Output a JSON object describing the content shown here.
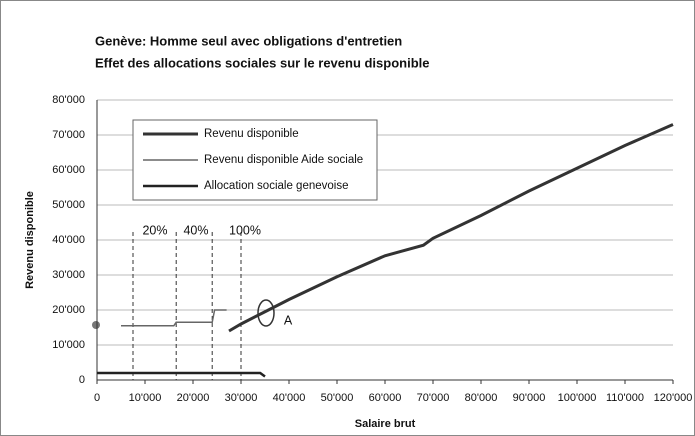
{
  "chart_data": {
    "type": "line",
    "title": "Genève: Homme seul avec obligations d'entretien",
    "subtitle": "Effet des allocations sociales sur le revenu disponible",
    "x_label": "Salaire brut",
    "y_label": "Revenu disponible",
    "xlim": [
      0,
      120000
    ],
    "ylim": [
      0,
      80000
    ],
    "xticks": [
      0,
      {
        "value": 10000,
        "label": "10'000"
      },
      {
        "value": 20000,
        "label": "20'000"
      },
      {
        "value": 30000,
        "label": "30'000"
      },
      {
        "value": 40000,
        "label": "40'000"
      },
      {
        "value": 50000,
        "label": "50'000"
      },
      {
        "value": 60000,
        "label": "60'000"
      },
      {
        "value": 70000,
        "label": "70'000"
      },
      {
        "value": 80000,
        "label": "80'000"
      },
      {
        "value": 90000,
        "label": "90'000"
      },
      {
        "value": 100000,
        "label": "100'000"
      },
      {
        "value": 110000,
        "label": "110'000"
      },
      {
        "value": 120000,
        "label": "120'000"
      }
    ],
    "yticks": [
      0,
      {
        "value": 10000,
        "label": "10'000"
      },
      {
        "value": 20000,
        "label": "20'000"
      },
      {
        "value": 30000,
        "label": "30'000"
      },
      {
        "value": 40000,
        "label": "40'000"
      },
      {
        "value": 50000,
        "label": "50'000"
      },
      {
        "value": 60000,
        "label": "60'000"
      },
      {
        "value": 70000,
        "label": "70'000"
      },
      {
        "value": 80000,
        "label": "80'000"
      }
    ],
    "grid": true,
    "series": [
      {
        "name": "Revenu disponible",
        "color": "#333333",
        "width": 3,
        "x": [
          27500,
          30000,
          35000,
          40000,
          50000,
          60000,
          68000,
          70000,
          80000,
          90000,
          100000,
          110000,
          120000
        ],
        "values": [
          14000,
          16000,
          19500,
          23000,
          29500,
          35500,
          38500,
          40500,
          47000,
          54000,
          60500,
          67000,
          73000
        ]
      },
      {
        "name": "Revenu disponible Aide sociale",
        "color": "#666666",
        "width": 1.5,
        "x": [
          5000,
          16000,
          16500,
          24000,
          24500,
          27000
        ],
        "values": [
          15500,
          15500,
          16500,
          16500,
          20000,
          20000
        ]
      },
      {
        "name": "Allocation sociale genevoise",
        "color": "#222222",
        "width": 2.5,
        "x": [
          0,
          34000,
          35000
        ],
        "values": [
          2000,
          2000,
          1000
        ]
      }
    ],
    "vlines": [
      7500,
      16500,
      24000,
      30000
    ],
    "annotations": [
      "20%",
      "40%",
      "100%",
      "A"
    ]
  }
}
